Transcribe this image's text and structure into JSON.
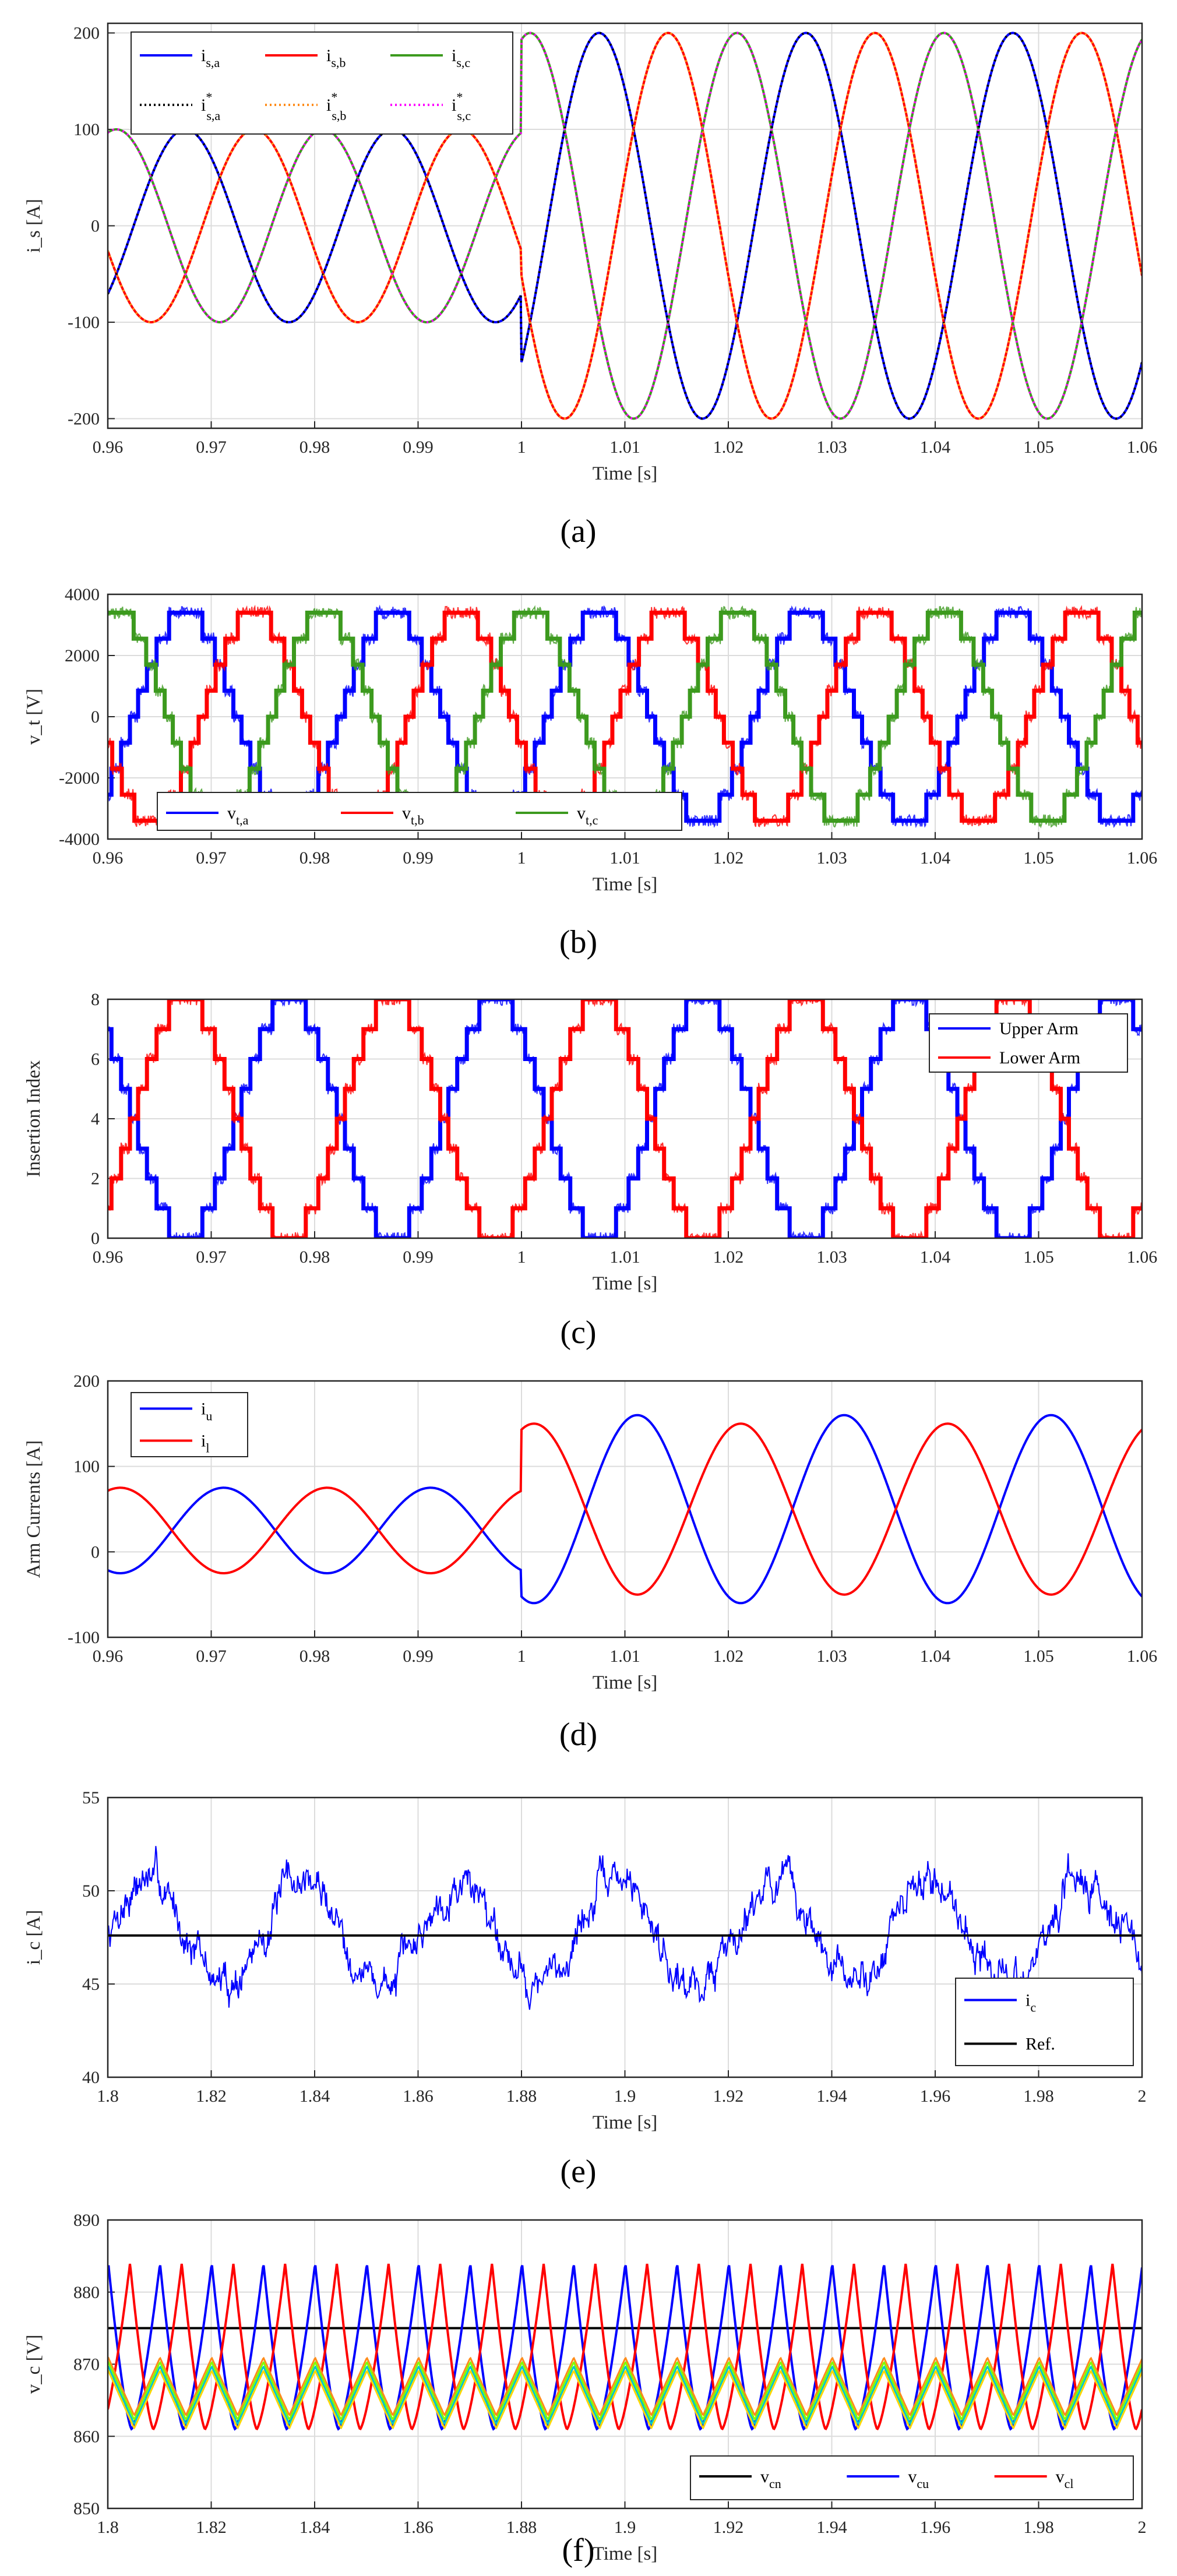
{
  "chart_data": [
    {
      "id": "a",
      "type": "line",
      "panel_label": "(a)",
      "xlabel": "Time [s]",
      "ylabel": "i_s [A]",
      "xlim": [
        0.96,
        1.06
      ],
      "ylim": [
        -210,
        210
      ],
      "xticks": [
        "0.96",
        "0.97",
        "0.98",
        "0.99",
        "1",
        "1.01",
        "1.02",
        "1.03",
        "1.04",
        "1.05",
        "1.06"
      ],
      "yticks": [
        "-200",
        "-100",
        "0",
        "100",
        "200"
      ],
      "ytick_values": [
        -200,
        -100,
        0,
        100,
        200
      ],
      "grid": true,
      "legend_position": "top-left",
      "legend": [
        {
          "main": "i",
          "sub": "s,a",
          "color": "#0000ff",
          "style": "solid"
        },
        {
          "main": "i",
          "sub": "s,b",
          "color": "#ff0000",
          "style": "solid"
        },
        {
          "main": "i",
          "sub": "s,c",
          "color": "#3c9a1e",
          "style": "solid"
        },
        {
          "main": "i",
          "sup": "*",
          "sub": "s,a",
          "color": "#000000",
          "style": "dotted"
        },
        {
          "main": "i",
          "sup": "*",
          "sub": "s,b",
          "color": "#ff8c1a",
          "style": "dotted"
        },
        {
          "main": "i",
          "sup": "*",
          "sub": "s,c",
          "color": "#ff00ff",
          "style": "dotted"
        }
      ],
      "series": [
        {
          "name": "i_s,a",
          "kind": "sine",
          "color": "#0000ff",
          "freq": 50,
          "amp_before": 100,
          "amp_after": 200,
          "switch_t": 1.0,
          "peak_time": 0.9675,
          "phase_deg": 0
        },
        {
          "name": "i_s,b",
          "kind": "sine",
          "color": "#ff0000",
          "freq": 50,
          "amp_before": 100,
          "amp_after": 200,
          "switch_t": 1.0,
          "peak_time": 0.9675,
          "phase_deg": -120
        },
        {
          "name": "i_s,c",
          "kind": "sine",
          "color": "#3c9a1e",
          "freq": 50,
          "amp_before": 100,
          "amp_after": 200,
          "switch_t": 1.0,
          "peak_time": 0.9675,
          "phase_deg": 120
        },
        {
          "name": "i*_s,a",
          "kind": "sine",
          "color": "#000000",
          "dotted": true,
          "freq": 50,
          "amp_before": 100,
          "amp_after": 200,
          "switch_t": 1.0,
          "peak_time": 0.9675,
          "phase_deg": 0
        },
        {
          "name": "i*_s,b",
          "kind": "sine",
          "color": "#ff8c1a",
          "dotted": true,
          "freq": 50,
          "amp_before": 100,
          "amp_after": 200,
          "switch_t": 1.0,
          "peak_time": 0.9675,
          "phase_deg": -120
        },
        {
          "name": "i*_s,c",
          "kind": "sine",
          "color": "#ff00ff",
          "dotted": true,
          "freq": 50,
          "amp_before": 100,
          "amp_after": 200,
          "switch_t": 1.0,
          "peak_time": 0.9675,
          "phase_deg": 120
        }
      ]
    },
    {
      "id": "b",
      "type": "line",
      "panel_label": "(b)",
      "xlabel": "Time [s]",
      "ylabel": "v_t [V]",
      "xlim": [
        0.96,
        1.06
      ],
      "ylim": [
        -4000,
        4000
      ],
      "xticks": [
        "0.96",
        "0.97",
        "0.98",
        "0.99",
        "1",
        "1.01",
        "1.02",
        "1.03",
        "1.04",
        "1.05",
        "1.06"
      ],
      "yticks": [
        "-4000",
        "-2000",
        "0",
        "2000",
        "4000"
      ],
      "ytick_values": [
        -4000,
        -2000,
        0,
        2000,
        4000
      ],
      "grid": true,
      "legend_position": "bottom-left",
      "legend": [
        {
          "main": "v",
          "sub": "t,a",
          "color": "#0000ff",
          "style": "solid"
        },
        {
          "main": "v",
          "sub": "t,b",
          "color": "#ff0000",
          "style": "solid"
        },
        {
          "main": "v",
          "sub": "t,c",
          "color": "#3c9a1e",
          "style": "solid"
        }
      ],
      "series": [
        {
          "name": "v_t,a",
          "kind": "stair",
          "color": "#0000ff",
          "freq": 50,
          "amp": 3400,
          "peak_time": 0.9675,
          "phase_deg": 0,
          "levels": 4
        },
        {
          "name": "v_t,b",
          "kind": "stair",
          "color": "#ff0000",
          "freq": 50,
          "amp": 3400,
          "peak_time": 0.9675,
          "phase_deg": -120,
          "levels": 4
        },
        {
          "name": "v_t,c",
          "kind": "stair",
          "color": "#3c9a1e",
          "freq": 50,
          "amp": 3400,
          "peak_time": 0.9675,
          "phase_deg": 120,
          "levels": 4
        }
      ]
    },
    {
      "id": "c",
      "type": "line",
      "panel_label": "(c)",
      "xlabel": "Time [s]",
      "ylabel": "Insertion Index",
      "xlim": [
        0.96,
        1.06
      ],
      "ylim": [
        0,
        8
      ],
      "xticks": [
        "0.96",
        "0.97",
        "0.98",
        "0.99",
        "1",
        "1.01",
        "1.02",
        "1.03",
        "1.04",
        "1.05",
        "1.06"
      ],
      "yticks": [
        "0",
        "2",
        "4",
        "6",
        "8"
      ],
      "ytick_values": [
        0,
        2,
        4,
        6,
        8
      ],
      "grid": true,
      "legend_position": "top-right",
      "legend": [
        {
          "main": "Upper Arm",
          "color": "#0000ff",
          "style": "solid"
        },
        {
          "main": "Lower Arm",
          "color": "#ff0000",
          "style": "solid"
        }
      ],
      "series": [
        {
          "name": "Upper Arm",
          "kind": "index",
          "color": "#0000ff",
          "freq": 50,
          "offset": 4,
          "amp": 4,
          "peak_time": 0.9575,
          "phase_deg": 0
        },
        {
          "name": "Lower Arm",
          "kind": "index",
          "color": "#ff0000",
          "freq": 50,
          "offset": 4,
          "amp": -4,
          "peak_time": 0.9575,
          "phase_deg": 0
        }
      ]
    },
    {
      "id": "d",
      "type": "line",
      "panel_label": "(d)",
      "xlabel": "Time [s]",
      "ylabel": "Arm Currents [A]",
      "xlim": [
        0.96,
        1.06
      ],
      "ylim": [
        -100,
        200
      ],
      "xticks": [
        "0.96",
        "0.97",
        "0.98",
        "0.99",
        "1",
        "1.01",
        "1.02",
        "1.03",
        "1.04",
        "1.05",
        "1.06"
      ],
      "yticks": [
        "-100",
        "0",
        "100",
        "200"
      ],
      "ytick_values": [
        -100,
        0,
        100,
        200
      ],
      "grid": true,
      "legend_position": "top-left",
      "legend": [
        {
          "main": "i",
          "sub": "u",
          "color": "#0000ff",
          "style": "solid"
        },
        {
          "main": "i",
          "sub": "l",
          "color": "#ff0000",
          "style": "solid"
        }
      ],
      "series": [
        {
          "name": "i_u",
          "kind": "arm",
          "color": "#0000ff",
          "freq": 50,
          "offset_before": 25,
          "amp_before": 50,
          "offset_after": 50,
          "amp_after": 110,
          "switch_t": 1.0,
          "peak_time": 0.9712,
          "phase_deg": 0
        },
        {
          "name": "i_l",
          "kind": "arm",
          "color": "#ff0000",
          "freq": 50,
          "offset_before": 25,
          "amp_before": -50,
          "offset_after": 50,
          "amp_after": -100,
          "switch_t": 1.0,
          "peak_time": 0.9712,
          "phase_deg": 0
        }
      ]
    },
    {
      "id": "e",
      "type": "line",
      "panel_label": "(e)",
      "xlabel": "Time [s]",
      "ylabel": "i_c [A]",
      "xlim": [
        1.8,
        2.0
      ],
      "ylim": [
        40,
        55
      ],
      "xticks": [
        "1.8",
        "1.82",
        "1.84",
        "1.86",
        "1.88",
        "1.9",
        "1.92",
        "1.94",
        "1.96",
        "1.98",
        "2"
      ],
      "yticks": [
        "40",
        "45",
        "50",
        "55"
      ],
      "ytick_values": [
        40,
        45,
        50,
        55
      ],
      "grid": true,
      "legend_position": "bottom-right",
      "legend": [
        {
          "main": "i",
          "sub": "c",
          "color": "#0000ff",
          "style": "solid"
        },
        {
          "main": "Ref.",
          "color": "#000000",
          "style": "solid"
        }
      ],
      "series": [
        {
          "name": "i_c",
          "kind": "noisy",
          "color": "#0000ff",
          "mean": 47.8,
          "ripple_freq": 33,
          "ripple_amp": 2.8,
          "noise": 1.1,
          "seed": 7
        },
        {
          "name": "Ref.",
          "kind": "const",
          "color": "#000000",
          "value": 47.6
        }
      ]
    },
    {
      "id": "f",
      "type": "line",
      "panel_label": "(f)",
      "xlabel": "Time [s]",
      "ylabel": "v_c [V]",
      "xlim": [
        1.8,
        2.0
      ],
      "ylim": [
        850,
        890
      ],
      "xticks": [
        "1.8",
        "1.82",
        "1.84",
        "1.86",
        "1.88",
        "1.9",
        "1.92",
        "1.94",
        "1.96",
        "1.98",
        "2"
      ],
      "yticks": [
        "850",
        "860",
        "870",
        "880",
        "890"
      ],
      "ytick_values": [
        850,
        860,
        870,
        880,
        890
      ],
      "grid": true,
      "legend_position": "bottom-right",
      "legend": [
        {
          "main": "v",
          "sub": "cn",
          "color": "#000000",
          "style": "solid"
        },
        {
          "main": "v",
          "sub": "cu",
          "color": "#0000ff",
          "style": "solid"
        },
        {
          "main": "v",
          "sub": "cl",
          "color": "#ff0000",
          "style": "solid"
        }
      ],
      "series": [
        {
          "name": "v_cn",
          "kind": "const",
          "color": "#000000",
          "value": 875
        },
        {
          "name": "v_cu",
          "kind": "saw",
          "color": "#0000ff",
          "freq": 100,
          "low": 861,
          "high": 884,
          "peak_time": 1.8101
        },
        {
          "name": "v_cl",
          "kind": "saw",
          "color": "#ff0000",
          "freq": 100,
          "low": 861,
          "high": 884,
          "peak_time": 1.8043
        },
        {
          "name": "cells",
          "kind": "cells",
          "colors": [
            "#ffd700",
            "#00c8c8",
            "#7fff00",
            "#ff8c1a"
          ],
          "freq": 100,
          "low": 862,
          "high": 870,
          "peak_time": 1.8101
        }
      ]
    }
  ]
}
